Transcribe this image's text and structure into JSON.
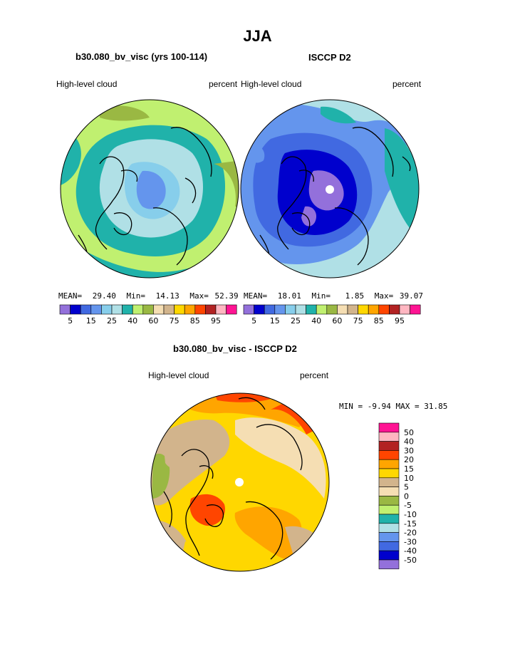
{
  "page_title": "JJA",
  "panels": [
    {
      "id": "model",
      "title": "b30.080_bv_visc (yrs 100-114)",
      "variable": "High-level cloud",
      "units": "percent",
      "mean_label": "MEAN=",
      "mean": "29.40",
      "min_label": "Min=",
      "min": "14.13",
      "max_label": "Max=",
      "max": "52.39"
    },
    {
      "id": "obs",
      "title": "ISCCP D2",
      "variable": "High-level cloud",
      "units": "percent",
      "mean_label": "MEAN=",
      "mean": "18.01",
      "min_label": "Min=",
      "min": "1.85",
      "max_label": "Max=",
      "max": "39.07"
    },
    {
      "id": "diff",
      "title": "b30.080_bv_visc - ISCCP D2",
      "variable": "High-level cloud",
      "units": "percent",
      "minmax": "MIN =   -9.94 MAX =   31.85"
    }
  ],
  "colorbar_abs": {
    "colors": [
      "#9370db",
      "#0000cd",
      "#4169e1",
      "#6495ed",
      "#87ceeb",
      "#b0e0e6",
      "#20b2aa",
      "#c0f070",
      "#9ab843",
      "#f5deb3",
      "#d2b48c",
      "#ffd700",
      "#ffa500",
      "#ff4500",
      "#b22222",
      "#ffb6c1",
      "#ff1493"
    ],
    "tick_labels": [
      "5",
      "15",
      "25",
      "40",
      "60",
      "75",
      "85",
      "95"
    ]
  },
  "colorbar_diff": {
    "colors": [
      "#ff1493",
      "#ffb6c1",
      "#b22222",
      "#ff4500",
      "#ffa500",
      "#ffd700",
      "#d2b48c",
      "#f5deb3",
      "#9ab843",
      "#c0f070",
      "#20b2aa",
      "#b0e0e6",
      "#6495ed",
      "#4169e1",
      "#0000cd",
      "#9370db"
    ],
    "tick_labels": [
      "50",
      "40",
      "30",
      "20",
      "15",
      "10",
      "5",
      "0",
      "-5",
      "-10",
      "-15",
      "-20",
      "-30",
      "-40",
      "-50"
    ]
  },
  "chart_data": {
    "type": "heatmap",
    "title": "JJA",
    "projection": "north polar stereographic",
    "season": "JJA",
    "variable": "High-level cloud",
    "units": "percent",
    "maps": [
      {
        "title": "b30.080_bv_visc (yrs 100-114)",
        "mean": 29.4,
        "min": 14.13,
        "max": 52.39,
        "levels": [
          5,
          10,
          15,
          20,
          25,
          30,
          40,
          50,
          60,
          70,
          75,
          80,
          85,
          90,
          95
        ]
      },
      {
        "title": "ISCCP D2",
        "mean": 18.01,
        "min": 1.85,
        "max": 39.07,
        "levels": [
          5,
          10,
          15,
          20,
          25,
          30,
          40,
          50,
          60,
          70,
          75,
          80,
          85,
          90,
          95
        ]
      },
      {
        "title": "b30.080_bv_visc - ISCCP D2",
        "min": -9.94,
        "max": 31.85,
        "levels": [
          -50,
          -40,
          -30,
          -20,
          -15,
          -10,
          -5,
          0,
          5,
          10,
          15,
          20,
          30,
          40,
          50
        ]
      }
    ]
  }
}
